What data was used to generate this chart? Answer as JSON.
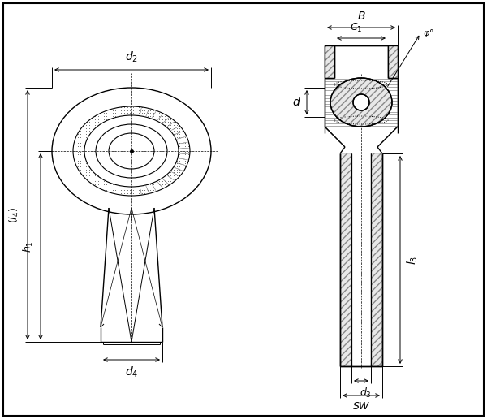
{
  "bg_color": "#ffffff",
  "line_color": "#000000",
  "fig_width": 6.0,
  "fig_height": 5.16,
  "dpi": 100,
  "lw_main": 1.0,
  "lw_dim": 0.7,
  "lw_hatch": 0.5,
  "hatch_color": "#888888",
  "dim_color": "#000000"
}
